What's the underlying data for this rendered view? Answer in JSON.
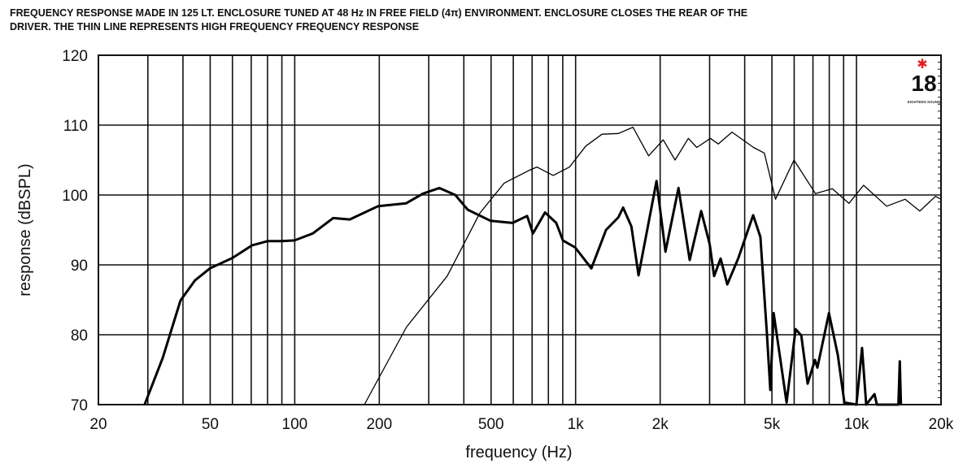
{
  "title_lines": [
    "FREQUENCY RESPONSE MADE IN 125 LT. ENCLOSURE TUNED AT 48 Hz IN FREE FIELD (4π) ENVIRONMENT. ENCLOSURE CLOSES THE REAR OF THE",
    "DRIVER. THE THIN LINE REPRESENTS HIGH FREQUENCY FREQUENCY RESPONSE"
  ],
  "logo": {
    "number": "18",
    "text": "EIGHTEEN SOUND",
    "star_color": "#e02020"
  },
  "chart_data": {
    "type": "line",
    "title": "FREQUENCY RESPONSE MADE IN 125 LT. ENCLOSURE TUNED AT 48 Hz IN FREE FIELD (4π) ENVIRONMENT. ENCLOSURE CLOSES THE REAR OF THE DRIVER. THE THIN LINE REPRESENTS HIGH FREQUENCY FREQUENCY RESPONSE",
    "xlabel": "frequency (Hz)",
    "ylabel": "response (dBSPL)",
    "xscale": "log",
    "xlim": [
      20,
      20000
    ],
    "ylim": [
      70,
      120
    ],
    "grid": true,
    "x_ticks": [
      20,
      50,
      100,
      200,
      500,
      1000,
      2000,
      5000,
      10000,
      20000
    ],
    "x_tick_labels": [
      "20",
      "50",
      "100",
      "200",
      "500",
      "1k",
      "2k",
      "5k",
      "10k",
      "20k"
    ],
    "y_ticks": [
      70,
      80,
      90,
      100,
      110,
      120
    ],
    "y_tick_labels": [
      "70",
      "80",
      "90",
      "100",
      "110",
      "120"
    ],
    "series": [
      {
        "name": "main response (thick line)",
        "style": "thick",
        "points": [
          [
            29.2,
            70
          ],
          [
            33.9,
            76.7
          ],
          [
            39.2,
            84.9
          ],
          [
            44.2,
            87.8
          ],
          [
            49.9,
            89.5
          ],
          [
            60.1,
            91
          ],
          [
            70.5,
            92.8
          ],
          [
            80,
            93.4
          ],
          [
            90,
            93.4
          ],
          [
            99.8,
            93.5
          ],
          [
            116,
            94.5
          ],
          [
            137,
            96.7
          ],
          [
            157,
            96.5
          ],
          [
            198,
            98.4
          ],
          [
            249,
            98.8
          ],
          [
            286,
            100.2
          ],
          [
            327,
            101
          ],
          [
            373,
            100
          ],
          [
            413,
            97.9
          ],
          [
            498,
            96.3
          ],
          [
            596,
            96
          ],
          [
            672,
            97
          ],
          [
            705,
            94.5
          ],
          [
            778,
            97.5
          ],
          [
            853,
            96
          ],
          [
            901,
            93.5
          ],
          [
            996,
            92.5
          ],
          [
            1138,
            89.5
          ],
          [
            1283,
            95
          ],
          [
            1420,
            96.8
          ],
          [
            1476,
            98.2
          ],
          [
            1580,
            95.5
          ],
          [
            1675,
            88.5
          ],
          [
            1941,
            102
          ],
          [
            2089,
            91.9
          ],
          [
            2324,
            101
          ],
          [
            2549,
            90.7
          ],
          [
            2800,
            97.7
          ],
          [
            3000,
            93
          ],
          [
            3113,
            88.4
          ],
          [
            3282,
            90.9
          ],
          [
            3467,
            87.2
          ],
          [
            3800,
            91
          ],
          [
            4288,
            97.1
          ],
          [
            4550,
            94
          ],
          [
            4800,
            80
          ],
          [
            4933,
            72.1
          ],
          [
            5070,
            83.1
          ],
          [
            5637,
            70.3
          ],
          [
            6070,
            80.8
          ],
          [
            6360,
            79.9
          ],
          [
            6700,
            73
          ],
          [
            7115,
            76.4
          ],
          [
            7260,
            75.3
          ],
          [
            7980,
            83.1
          ],
          [
            8580,
            77.1
          ],
          [
            9060,
            70.3
          ],
          [
            10000,
            70
          ],
          [
            10470,
            78.1
          ],
          [
            10830,
            70
          ],
          [
            11590,
            71.5
          ],
          [
            11820,
            70
          ],
          [
            14100,
            70
          ],
          [
            14260,
            76.2
          ],
          [
            14400,
            70
          ]
        ]
      },
      {
        "name": "high frequency response (thin line)",
        "style": "thin",
        "points": [
          [
            177,
            70
          ],
          [
            250,
            81.1
          ],
          [
            349,
            88.4
          ],
          [
            456,
            97.4
          ],
          [
            557,
            101.7
          ],
          [
            681,
            103.5
          ],
          [
            728,
            104
          ],
          [
            832,
            102.8
          ],
          [
            951,
            104
          ],
          [
            1087,
            107
          ],
          [
            1242,
            108.7
          ],
          [
            1420,
            108.8
          ],
          [
            1600,
            109.7
          ],
          [
            1820,
            105.6
          ],
          [
            2050,
            107.9
          ],
          [
            2260,
            105
          ],
          [
            2520,
            108.1
          ],
          [
            2700,
            106.8
          ],
          [
            3020,
            108.1
          ],
          [
            3220,
            107.3
          ],
          [
            3605,
            109
          ],
          [
            4300,
            106.8
          ],
          [
            4700,
            106
          ],
          [
            5150,
            99.4
          ],
          [
            5990,
            105
          ],
          [
            7150,
            100.2
          ],
          [
            8200,
            100.9
          ],
          [
            9400,
            98.8
          ],
          [
            10600,
            101.4
          ],
          [
            12800,
            98.4
          ],
          [
            14900,
            99.4
          ],
          [
            16800,
            97.7
          ],
          [
            19100,
            99.8
          ],
          [
            20000,
            99.4
          ]
        ]
      }
    ]
  }
}
